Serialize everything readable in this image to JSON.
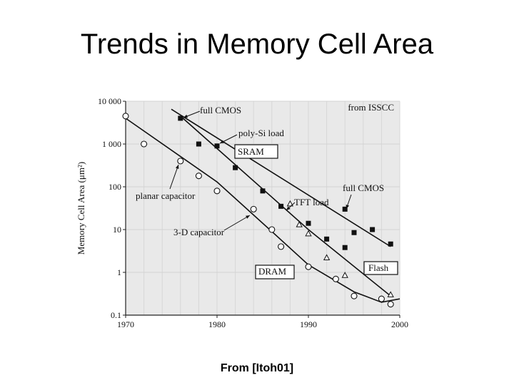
{
  "title": "Trends in Memory Cell Area",
  "caption": "From [Itoh01]",
  "chart_data": {
    "type": "scatter",
    "source_note": "from ISSCC",
    "ylabel": "Memory Cell Area (μm²)",
    "xlabel": "",
    "xlim": [
      1970,
      2000
    ],
    "ylim": [
      0.1,
      10000
    ],
    "yscale": "log",
    "grid": true,
    "x_ticks": [
      "1970",
      "1980",
      "1990",
      "2000"
    ],
    "y_ticks": [
      {
        "value": 10000,
        "label": "10 000"
      },
      {
        "value": 1000,
        "label": "1 000"
      },
      {
        "value": 100,
        "label": "100"
      },
      {
        "value": 10,
        "label": "10"
      },
      {
        "value": 1,
        "label": "1"
      },
      {
        "value": 0.1,
        "label": "0.1"
      }
    ],
    "series": [
      {
        "name": "SRAM",
        "marker": "filled-square",
        "points": [
          [
            1976,
            4000
          ],
          [
            1978,
            1000
          ],
          [
            1980,
            900
          ],
          [
            1982,
            280
          ],
          [
            1985,
            80
          ],
          [
            1987,
            35
          ],
          [
            1990,
            14
          ],
          [
            1992,
            6
          ],
          [
            1994,
            30
          ],
          [
            1994,
            3.8
          ],
          [
            1995,
            8.5
          ],
          [
            1997,
            10
          ],
          [
            1999,
            4.6
          ]
        ]
      },
      {
        "name": "TFT load",
        "marker": "open-triangle",
        "points": [
          [
            1988,
            40
          ],
          [
            1989,
            13
          ],
          [
            1990,
            8
          ],
          [
            1992,
            2.2
          ],
          [
            1994,
            0.85
          ],
          [
            1999,
            0.3
          ]
        ]
      },
      {
        "name": "DRAM",
        "marker": "open-circle",
        "points": [
          [
            1970,
            4500
          ],
          [
            1972,
            1000
          ],
          [
            1976,
            400
          ],
          [
            1978,
            180
          ],
          [
            1980,
            80
          ],
          [
            1984,
            30
          ],
          [
            1986,
            10
          ],
          [
            1987,
            4
          ],
          [
            1990,
            1.35
          ],
          [
            1993,
            0.7
          ],
          [
            1995,
            0.28
          ],
          [
            1998,
            0.24
          ],
          [
            1999,
            0.18
          ]
        ]
      }
    ],
    "trend_lines": [
      {
        "name": "full-cmos-trend",
        "points": [
          [
            1975,
            6500
          ],
          [
            1999,
            4
          ]
        ]
      },
      {
        "name": "sram-trend",
        "points": [
          [
            1976,
            4500
          ],
          [
            1990,
            10
          ],
          [
            1999,
            0.28
          ]
        ]
      },
      {
        "name": "dram-trend",
        "points": [
          [
            1970,
            4000
          ],
          [
            1980,
            130
          ],
          [
            1986,
            9
          ],
          [
            1990,
            1.5
          ],
          [
            1995,
            0.35
          ],
          [
            1998,
            0.2
          ],
          [
            2000,
            0.24
          ]
        ]
      }
    ],
    "annotations": [
      {
        "text": "full CMOS",
        "boxed": false
      },
      {
        "text": "poly-Si load",
        "boxed": false
      },
      {
        "text": "SRAM",
        "boxed": true
      },
      {
        "text": "planar capacitor",
        "boxed": false
      },
      {
        "text": "TFT load",
        "boxed": false
      },
      {
        "text": "full CMOS",
        "boxed": false
      },
      {
        "text": "3-D capacitor",
        "boxed": false
      },
      {
        "text": "DRAM",
        "boxed": true
      },
      {
        "text": "Flash",
        "boxed": true
      }
    ]
  }
}
